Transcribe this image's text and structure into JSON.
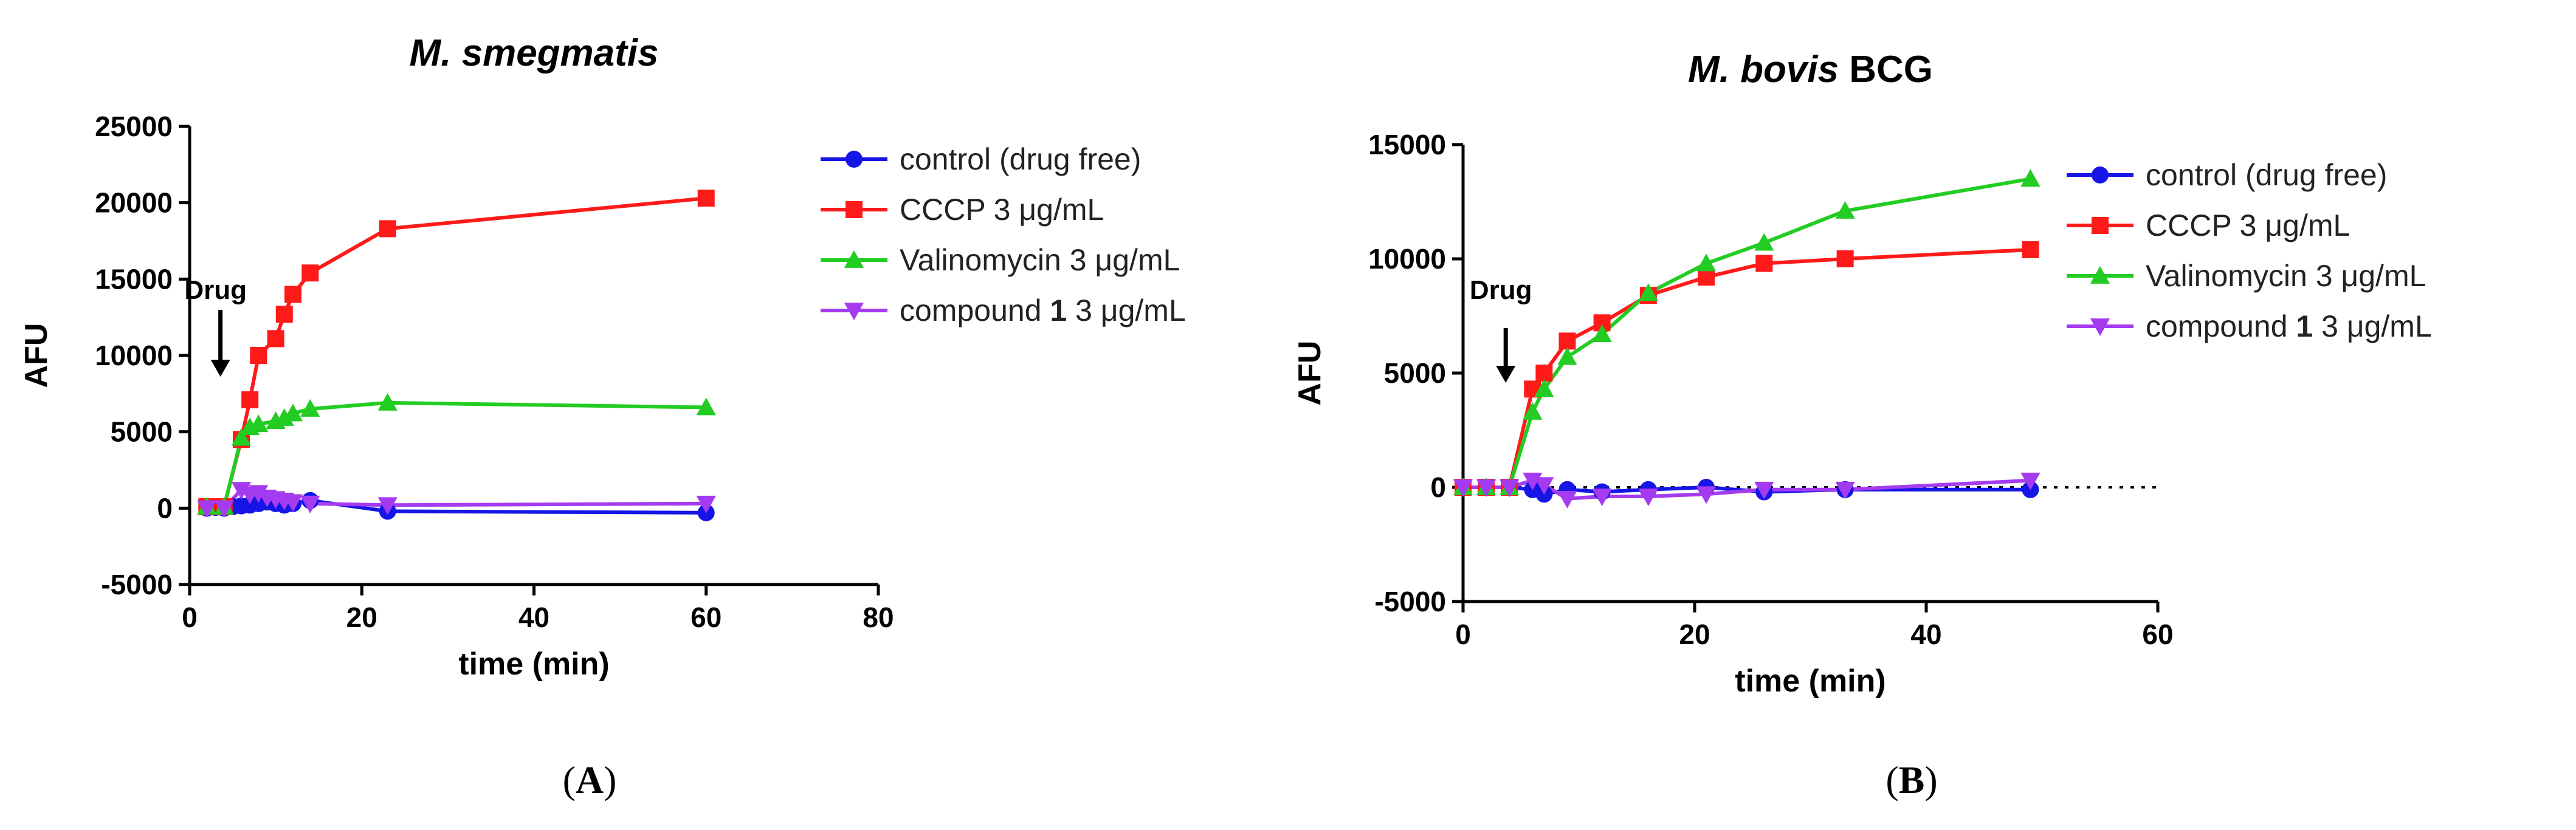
{
  "chart_data": [
    {
      "type": "line",
      "title": "M. smegmatis",
      "xlabel": "time (min)",
      "ylabel": "AFU",
      "xlim": [
        0,
        80
      ],
      "ylim": [
        -5000,
        25000
      ],
      "xticks": [
        0,
        20,
        40,
        60,
        80
      ],
      "yticks": [
        -5000,
        0,
        5000,
        10000,
        15000,
        20000,
        25000
      ],
      "xtick_labels": [
        "0",
        "20",
        "40",
        "60",
        "80"
      ],
      "ytick_labels": [
        "-5000",
        "0",
        "5000",
        "10000",
        "15000",
        "20000",
        "25000"
      ],
      "panel_label": "A",
      "annotation": {
        "text": "Drug",
        "x": 4
      },
      "zero_line": false,
      "legend_position": "right",
      "series": [
        {
          "name": "control (drug free)",
          "color": "#1515e6",
          "marker": "circle",
          "x": [
            2,
            3,
            4,
            5,
            6,
            7,
            8,
            9,
            10,
            11,
            12,
            14,
            23,
            60
          ],
          "y": [
            0,
            50,
            0,
            100,
            150,
            200,
            300,
            400,
            300,
            200,
            300,
            500,
            -200,
            -300
          ]
        },
        {
          "name": "CCCP 3 μg/mL",
          "color": "#ff1a1a",
          "marker": "square",
          "x": [
            2,
            4,
            6,
            7,
            8,
            10,
            11,
            12,
            14,
            23,
            60
          ],
          "y": [
            100,
            100,
            4500,
            7100,
            10000,
            11100,
            12700,
            14000,
            15400,
            18300,
            20300
          ]
        },
        {
          "name": "Valinomycin 3 μg/mL",
          "color": "#22cc22",
          "marker": "triangle",
          "x": [
            2,
            4,
            6,
            7,
            8,
            10,
            11,
            12,
            14,
            23,
            60
          ],
          "y": [
            100,
            100,
            4600,
            5300,
            5500,
            5700,
            5900,
            6200,
            6500,
            6900,
            6600
          ]
        },
        {
          "name": "compound 1 3 μg/mL",
          "color": "#a53bf0",
          "marker": "triangle-down",
          "x": [
            2,
            4,
            6,
            7,
            8,
            9,
            10,
            11,
            12,
            14,
            23,
            60
          ],
          "y": [
            0,
            0,
            1200,
            900,
            1000,
            700,
            600,
            500,
            400,
            300,
            200,
            300
          ]
        }
      ]
    },
    {
      "type": "line",
      "title": "M. bovis BCG",
      "xlabel": "time (min)",
      "ylabel": "AFU",
      "xlim": [
        0,
        60
      ],
      "ylim": [
        -5000,
        15000
      ],
      "xticks": [
        0,
        20,
        40,
        60
      ],
      "yticks": [
        -5000,
        0,
        5000,
        10000,
        15000
      ],
      "xtick_labels": [
        "0",
        "20",
        "40",
        "60"
      ],
      "ytick_labels": [
        "-5000",
        "0",
        "5000",
        "10000",
        "15000"
      ],
      "panel_label": "B",
      "annotation": {
        "text": "Drug",
        "x": 4
      },
      "zero_line": true,
      "legend_position": "right",
      "series": [
        {
          "name": "control (drug free)",
          "color": "#1515e6",
          "marker": "circle",
          "x": [
            0,
            2,
            4,
            6,
            7,
            9,
            12,
            16,
            21,
            26,
            33,
            49
          ],
          "y": [
            0,
            0,
            0,
            -100,
            -300,
            -100,
            -200,
            -100,
            0,
            -200,
            -100,
            -100
          ]
        },
        {
          "name": "CCCP 3 μg/mL",
          "color": "#ff1a1a",
          "marker": "square",
          "x": [
            0,
            2,
            4,
            6,
            7,
            9,
            12,
            16,
            21,
            26,
            33,
            49
          ],
          "y": [
            0,
            0,
            0,
            4300,
            5000,
            6400,
            7200,
            8400,
            9200,
            9800,
            10000,
            10400
          ]
        },
        {
          "name": "Valinomycin 3 μg/mL",
          "color": "#22cc22",
          "marker": "triangle",
          "x": [
            0,
            2,
            4,
            6,
            7,
            9,
            12,
            16,
            21,
            26,
            33,
            49
          ],
          "y": [
            0,
            0,
            0,
            3300,
            4300,
            5700,
            6700,
            8500,
            9800,
            10700,
            12100,
            13500
          ]
        },
        {
          "name": "compound 1 3 μg/mL",
          "color": "#a53bf0",
          "marker": "triangle-down",
          "x": [
            0,
            2,
            4,
            6,
            7,
            9,
            12,
            16,
            21,
            26,
            33,
            49
          ],
          "y": [
            0,
            0,
            0,
            300,
            100,
            -500,
            -400,
            -400,
            -300,
            -100,
            -100,
            300
          ]
        }
      ]
    }
  ]
}
